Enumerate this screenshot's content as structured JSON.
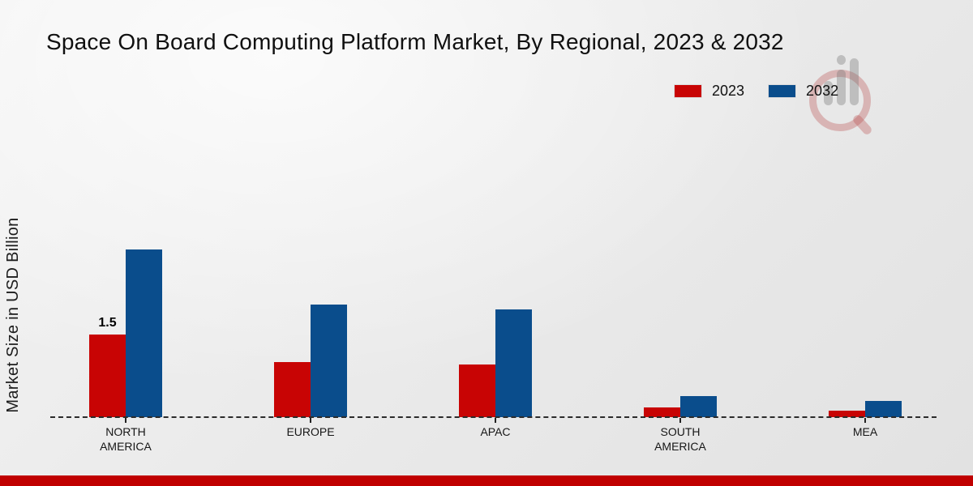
{
  "chart_data": {
    "type": "bar",
    "title": "Space On Board Computing Platform Market, By Regional, 2023 & 2032",
    "ylabel": "Market Size in USD Billion",
    "xlabel": "",
    "units": "USD Billion",
    "categories": [
      "NORTH AMERICA",
      "EUROPE",
      "APAC",
      "SOUTH AMERICA",
      "MEA"
    ],
    "series": [
      {
        "name": "2023",
        "color": "#c80404",
        "values": [
          1.5,
          1.0,
          0.95,
          0.18,
          0.12
        ],
        "data_labels": [
          "1.5",
          "",
          "",
          "",
          ""
        ]
      },
      {
        "name": "2032",
        "color": "#0a4d8c",
        "values": [
          3.05,
          2.05,
          1.95,
          0.38,
          0.29
        ],
        "data_labels": [
          "",
          "",
          "",
          "",
          ""
        ]
      }
    ],
    "ylim": [
      0,
      3.4
    ],
    "grid": false,
    "legend_position": "top-right",
    "baseline_style": "dashed"
  },
  "footer": {
    "accent_color": "#c00000"
  },
  "watermark": {
    "name": "market-research-logo"
  }
}
